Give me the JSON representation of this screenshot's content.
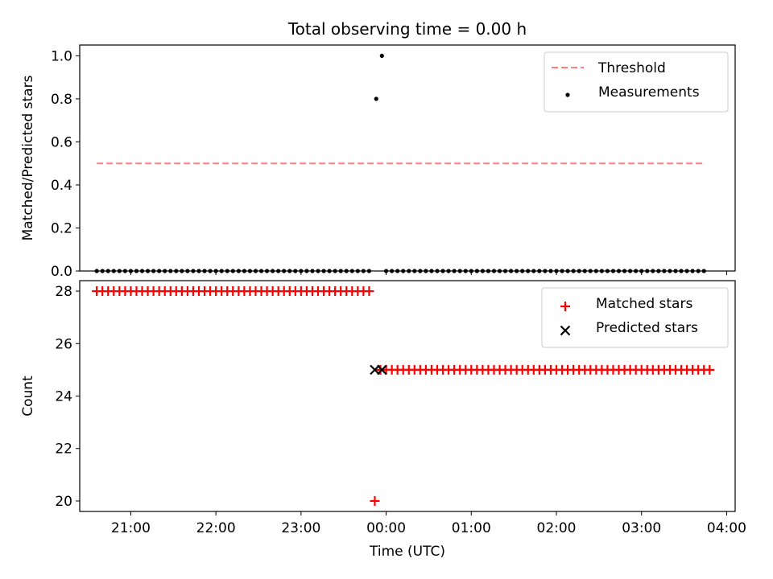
{
  "chart_data": {
    "title": "Total observing time = 0.00 h",
    "xlabel": "Time (UTC)",
    "x_units": "hours since 21:00 UTC reference (negative = before 21:00)",
    "xlim": [
      "20:24",
      "04:06"
    ],
    "xticks": [
      "21:00",
      "22:00",
      "23:00",
      "00:00",
      "01:00",
      "02:00",
      "03:00",
      "04:00"
    ],
    "panels": [
      {
        "type": "scatter",
        "ylabel": "Matched/Predicted stars",
        "ylim": [
          0.0,
          1.05
        ],
        "yticks": [
          "0.0",
          "0.2",
          "0.4",
          "0.6",
          "0.8",
          "1.0"
        ],
        "legend_position": "top-right",
        "threshold": {
          "name": "Threshold",
          "value": 0.5,
          "x_range": [
            "20:36",
            "03:44"
          ],
          "color": "#ff7f7f"
        },
        "series": [
          {
            "name": "Measurements",
            "marker": "dot",
            "color": "#000000",
            "segments": [
              {
                "from": "20:36",
                "to": "23:48",
                "step_minutes": 4,
                "y": 0.0
              },
              {
                "from": "00:00",
                "to": "03:44",
                "step_minutes": 4,
                "y": 0.0
              }
            ],
            "points": [
              {
                "x": "23:53",
                "y": 0.8
              },
              {
                "x": "23:57",
                "y": 1.0
              }
            ]
          }
        ]
      },
      {
        "type": "scatter",
        "ylabel": "Count",
        "ylim": [
          19.6,
          28.4
        ],
        "yticks": [
          "20",
          "22",
          "24",
          "26",
          "28"
        ],
        "legend_position": "top-right",
        "series": [
          {
            "name": "Matched stars",
            "marker": "plus",
            "color": "#ff0000",
            "segments": [
              {
                "from": "20:36",
                "to": "23:48",
                "step_minutes": 4,
                "y": 28
              },
              {
                "from": "23:56",
                "to": "03:48",
                "step_minutes": 4,
                "y": 25
              }
            ],
            "points": [
              {
                "x": "23:52",
                "y": 20
              }
            ]
          },
          {
            "name": "Predicted stars",
            "marker": "x",
            "color": "#000000",
            "segments": [],
            "points": [
              {
                "x": "23:52",
                "y": 25
              },
              {
                "x": "23:57",
                "y": 25
              }
            ]
          }
        ]
      }
    ]
  }
}
